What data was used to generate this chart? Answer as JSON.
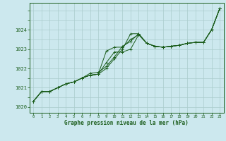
{
  "title": "Graphe pression niveau de la mer (hPa)",
  "bg_color": "#cce8ee",
  "grid_color": "#aacccc",
  "line_color": "#1a5c1a",
  "xlim": [
    -0.5,
    23.5
  ],
  "ylim": [
    1019.7,
    1025.4
  ],
  "yticks": [
    1020,
    1021,
    1022,
    1023,
    1024
  ],
  "xticks": [
    0,
    1,
    2,
    3,
    4,
    5,
    6,
    7,
    8,
    9,
    10,
    11,
    12,
    13,
    14,
    15,
    16,
    17,
    18,
    19,
    20,
    21,
    22,
    23
  ],
  "series": [
    [
      1020.3,
      1020.8,
      1020.8,
      1021.0,
      1021.2,
      1021.3,
      1021.5,
      1021.65,
      1021.7,
      1022.9,
      1023.1,
      1023.1,
      1023.5,
      1023.75,
      1023.3,
      1023.15,
      1023.1,
      1023.15,
      1023.2,
      1023.3,
      1023.35,
      1023.35,
      1024.0,
      1025.1
    ],
    [
      1020.3,
      1020.8,
      1020.8,
      1021.0,
      1021.2,
      1021.3,
      1021.5,
      1021.65,
      1021.7,
      1022.3,
      1022.85,
      1022.85,
      1023.0,
      1023.75,
      1023.3,
      1023.15,
      1023.1,
      1023.15,
      1023.2,
      1023.3,
      1023.35,
      1023.35,
      1024.0,
      1025.1
    ],
    [
      1020.3,
      1020.8,
      1020.8,
      1021.0,
      1021.2,
      1021.3,
      1021.5,
      1021.65,
      1021.7,
      1022.0,
      1022.5,
      1023.0,
      1023.8,
      1023.8,
      1023.3,
      1023.15,
      1023.1,
      1023.15,
      1023.2,
      1023.3,
      1023.35,
      1023.35,
      1024.0,
      1025.1
    ],
    [
      1020.3,
      1020.8,
      1020.8,
      1021.0,
      1021.2,
      1021.3,
      1021.5,
      1021.75,
      1021.8,
      1022.1,
      1022.6,
      1023.15,
      1023.4,
      1023.8,
      1023.3,
      1023.15,
      1023.1,
      1023.15,
      1023.2,
      1023.3,
      1023.35,
      1023.35,
      1024.0,
      1025.1
    ]
  ]
}
